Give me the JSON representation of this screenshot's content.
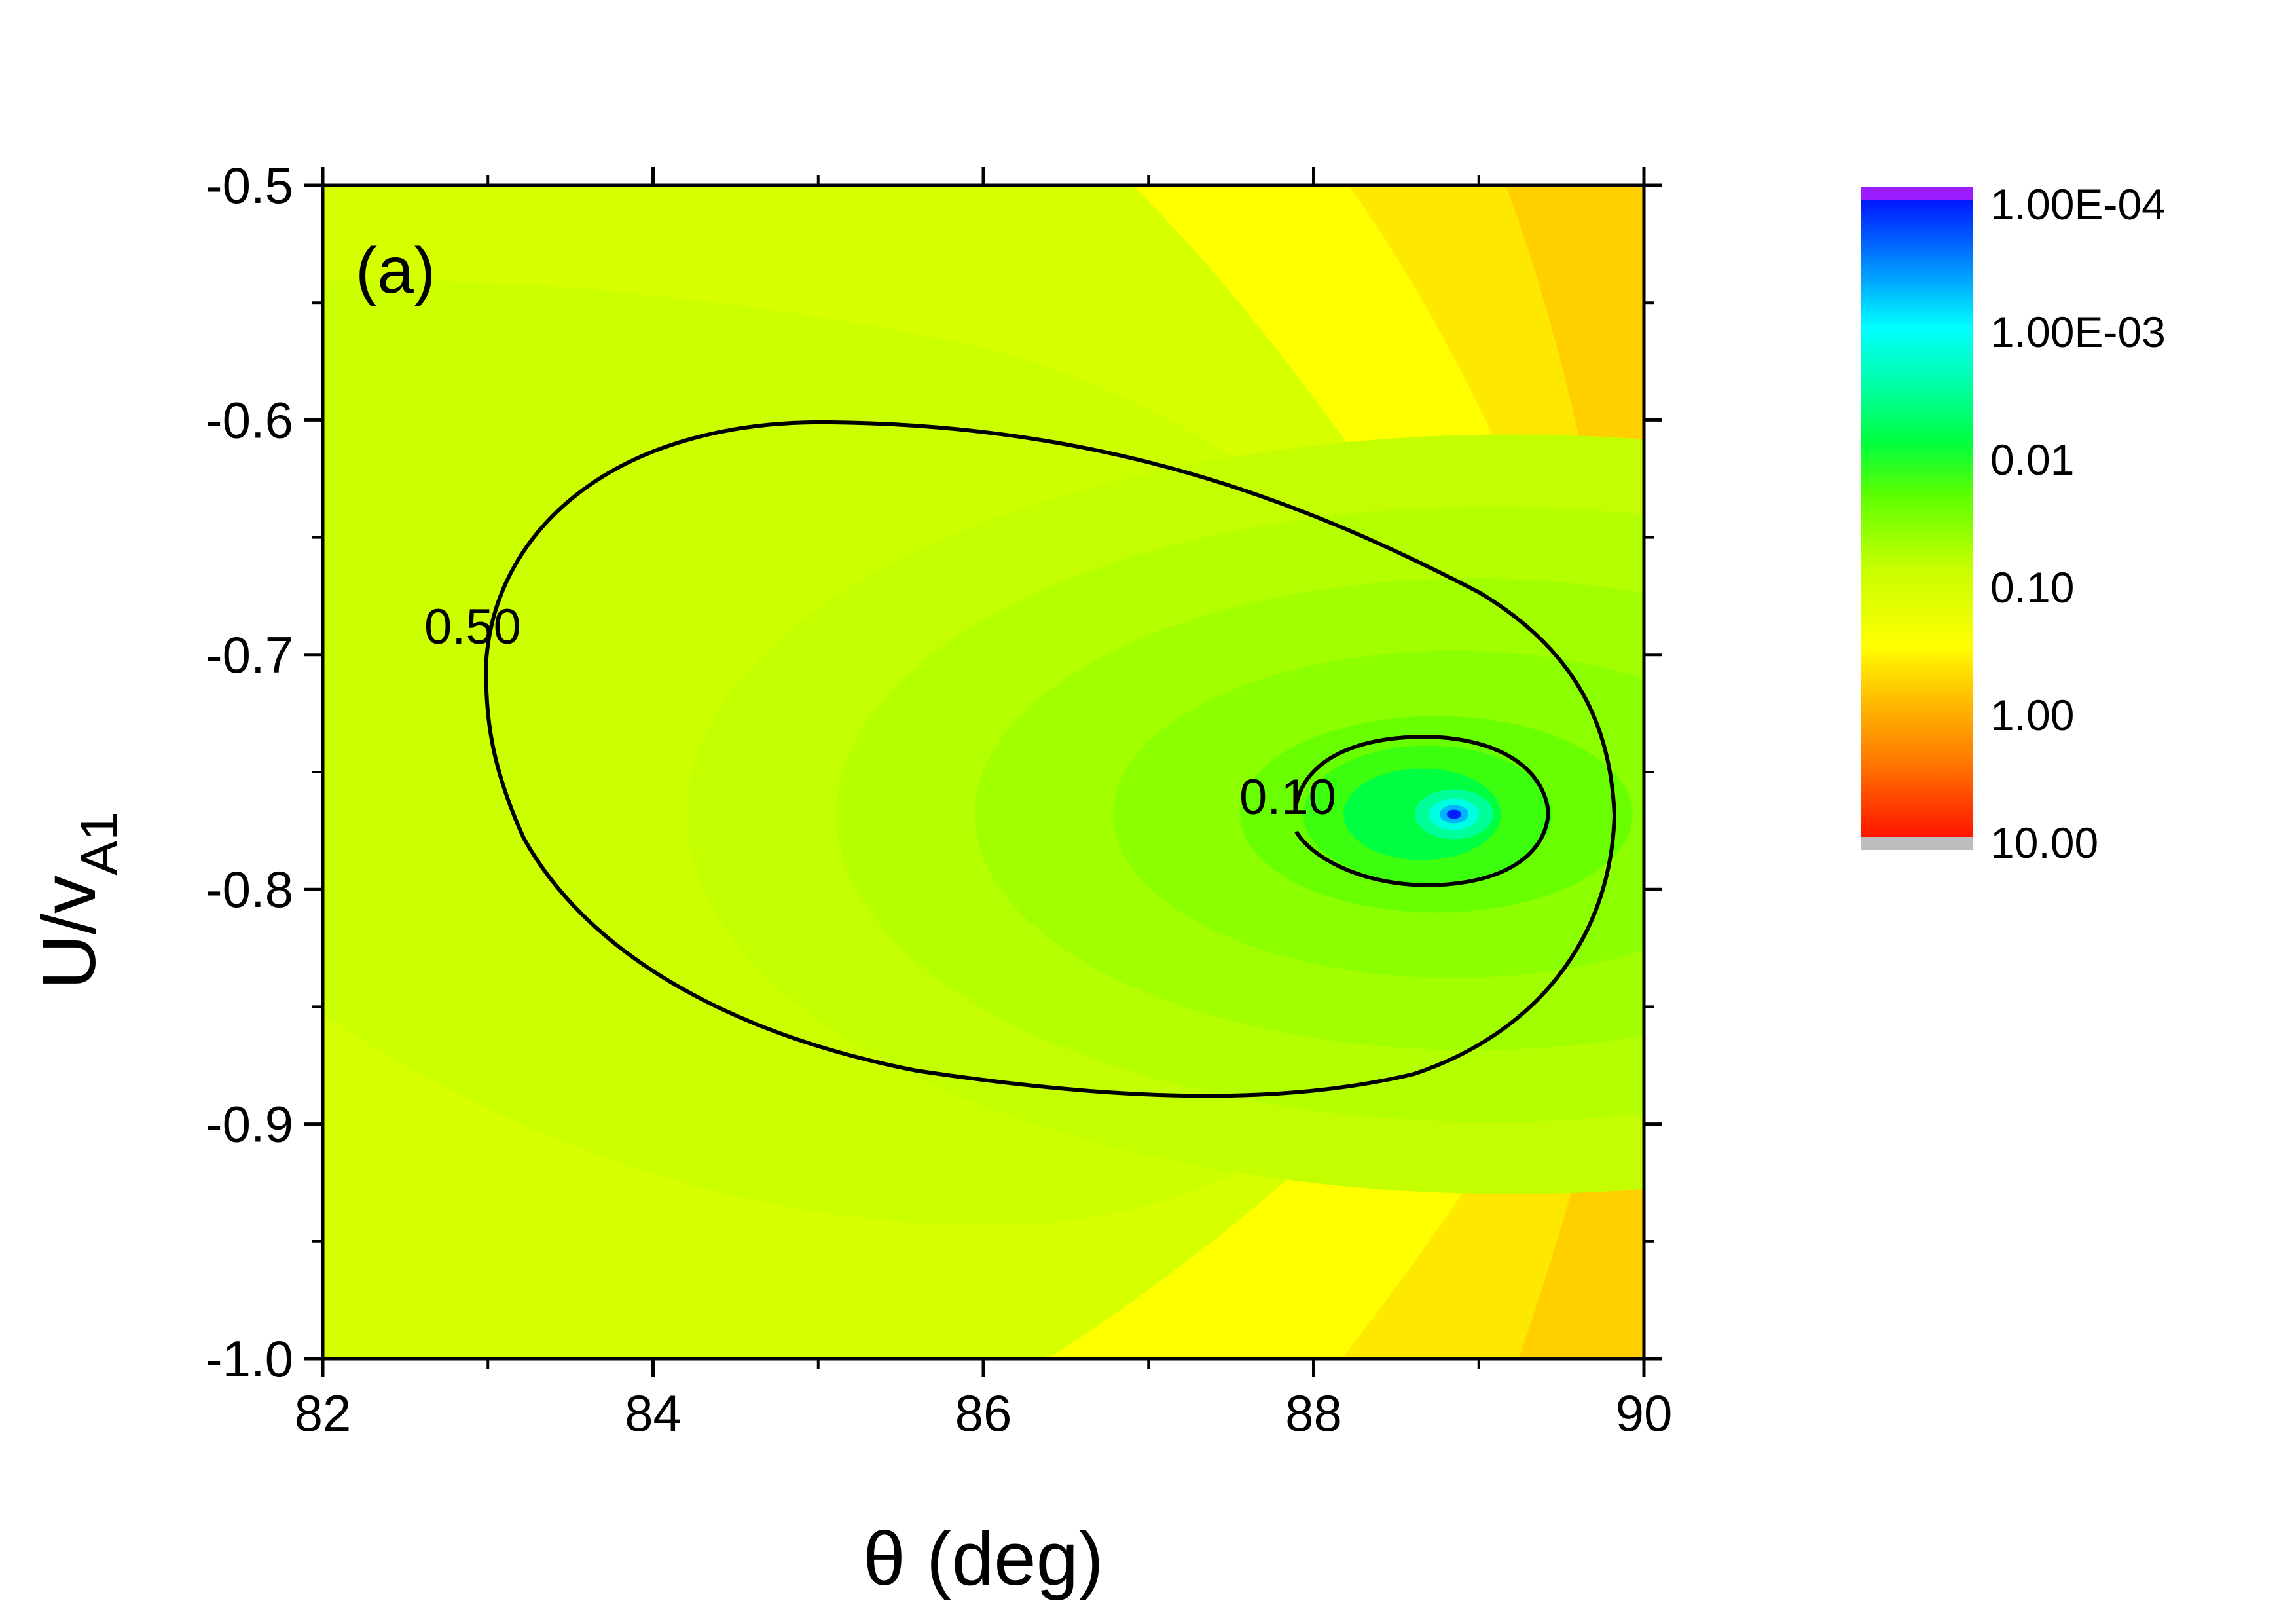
{
  "chart_data": {
    "type": "heatmap",
    "panel_label": "(a)",
    "xlabel": "θ (deg)",
    "ylabel_main": "U/v",
    "ylabel_sub": "A1",
    "xlim": [
      82,
      90
    ],
    "ylim": [
      -1.0,
      -0.5
    ],
    "xticks": [
      82,
      84,
      86,
      88,
      90
    ],
    "xtick_labels": [
      "82",
      "84",
      "86",
      "88",
      "90"
    ],
    "yticks": [
      -1.0,
      -0.9,
      -0.8,
      -0.7,
      -0.6,
      -0.5
    ],
    "ytick_labels": [
      "-1.0",
      "-0.9",
      "-0.8",
      "-0.7",
      "-0.6",
      "-0.5"
    ],
    "contour_lines": [
      {
        "label": "0.50",
        "level": 0.5
      },
      {
        "label": "0.10",
        "level": 0.1
      }
    ],
    "colorbar": {
      "scale": "log",
      "labels": [
        "1.00E-04",
        "1.00E-03",
        "0.01",
        "0.10",
        "1.00",
        "10.00"
      ],
      "range": [
        0.0001,
        10
      ]
    },
    "minimum": {
      "x": 88.85,
      "y": -0.768
    }
  }
}
